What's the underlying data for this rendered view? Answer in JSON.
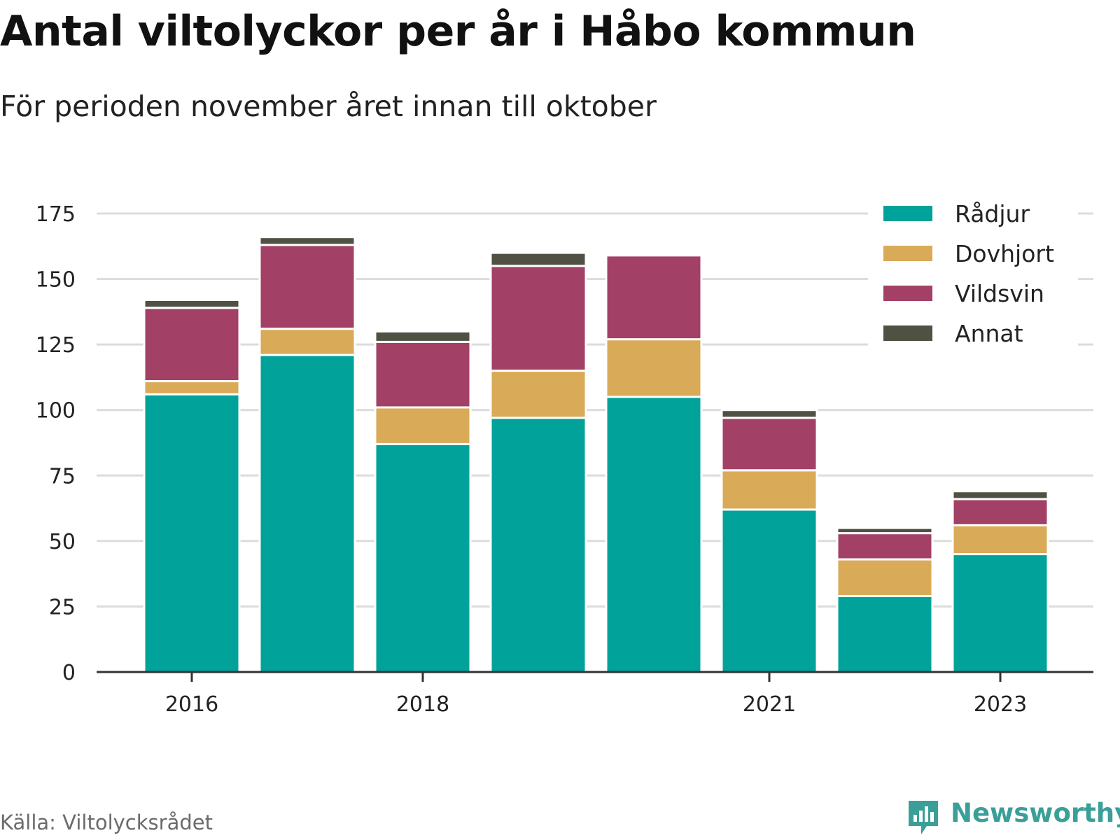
{
  "title": "Antal viltolyckor per år i Håbo kommun",
  "subtitle": "För perioden november året innan till oktober",
  "source": "Källa: Viltolycksrådet",
  "brand": {
    "name": "Newsworthy",
    "icon": "newsworthy-logo-icon"
  },
  "colors": {
    "Rådjur": "#00a29a",
    "Dovhjort": "#d9aa58",
    "Vildsvin": "#a34065",
    "Annat": "#4f5243",
    "grid": "#dcdcdc",
    "axis": "#333333"
  },
  "chart_data": {
    "type": "bar",
    "stacked": true,
    "categories": [
      2016,
      2017,
      2018,
      2019,
      2020,
      2021,
      2022,
      2023
    ],
    "x_tick_labels": [
      "2016",
      "2018",
      "2021",
      "2023"
    ],
    "series": [
      {
        "name": "Rådjur",
        "values": [
          106,
          121,
          87,
          97,
          105,
          62,
          29,
          45
        ]
      },
      {
        "name": "Dovhjort",
        "values": [
          5,
          10,
          14,
          18,
          22,
          15,
          14,
          11
        ]
      },
      {
        "name": "Vildsvin",
        "values": [
          28,
          32,
          25,
          40,
          32,
          20,
          10,
          10
        ]
      },
      {
        "name": "Annat",
        "values": [
          3,
          3,
          4,
          5,
          0,
          3,
          2,
          3
        ]
      }
    ],
    "ylim": [
      0,
      175
    ],
    "yticks": [
      0,
      25,
      50,
      75,
      100,
      125,
      150,
      175
    ],
    "grid": true,
    "legend_position": "top-right"
  }
}
